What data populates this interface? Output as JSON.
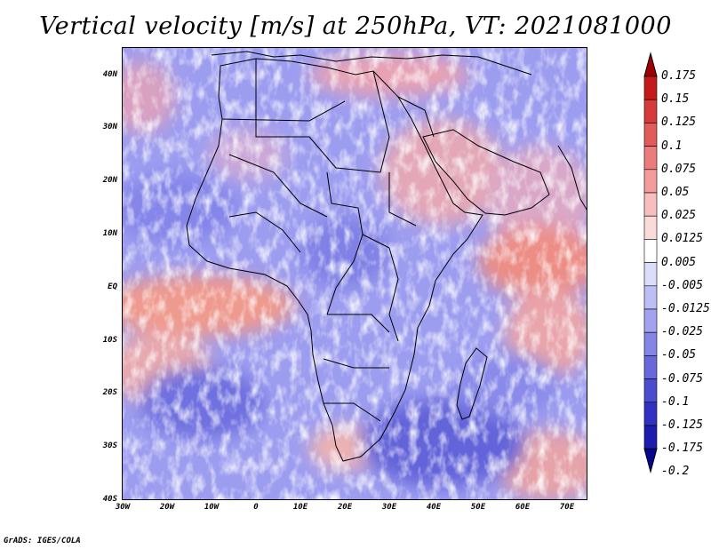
{
  "title": "Vertical velocity [m/s] at 250hPa, VT: 2021081000",
  "credit": "GrADS: IGES/COLA",
  "map": {
    "region": "Africa",
    "variable": "vertical velocity",
    "units": "m/s",
    "level": "250hPa",
    "valid_time": "2021081000",
    "lon_range": [
      -30,
      75
    ],
    "lat_range": [
      -40,
      45
    ]
  },
  "y_axis": {
    "labels": [
      "40N",
      "30N",
      "20N",
      "10N",
      "EQ",
      "10S",
      "20S",
      "30S",
      "40S"
    ],
    "values": [
      40,
      30,
      20,
      10,
      0,
      -10,
      -20,
      -30,
      -40
    ]
  },
  "x_axis": {
    "labels": [
      "30W",
      "20W",
      "10W",
      "0",
      "10E",
      "20E",
      "30E",
      "40E",
      "50E",
      "60E",
      "70E"
    ],
    "values": [
      -30,
      -20,
      -10,
      0,
      10,
      20,
      30,
      40,
      50,
      60,
      70
    ]
  },
  "colorbar": {
    "labels": [
      "0.175",
      "0.15",
      "0.125",
      "0.1",
      "0.075",
      "0.05",
      "0.025",
      "0.0125",
      "0.005",
      "-0.005",
      "-0.0125",
      "-0.025",
      "-0.05",
      "-0.075",
      "-0.1",
      "-0.125",
      "-0.175",
      "-0.2"
    ],
    "colors": [
      "#a00000",
      "#c41a1a",
      "#d63a3a",
      "#e25a5a",
      "#ec7c7c",
      "#f29c9c",
      "#f7bebe",
      "#fbdada",
      "#ffffff",
      "#dcdcfb",
      "#bebef6",
      "#a2a2ef",
      "#8585e6",
      "#6868dc",
      "#4c4cd0",
      "#3232c2",
      "#1c1cae",
      "#06068f"
    ]
  }
}
